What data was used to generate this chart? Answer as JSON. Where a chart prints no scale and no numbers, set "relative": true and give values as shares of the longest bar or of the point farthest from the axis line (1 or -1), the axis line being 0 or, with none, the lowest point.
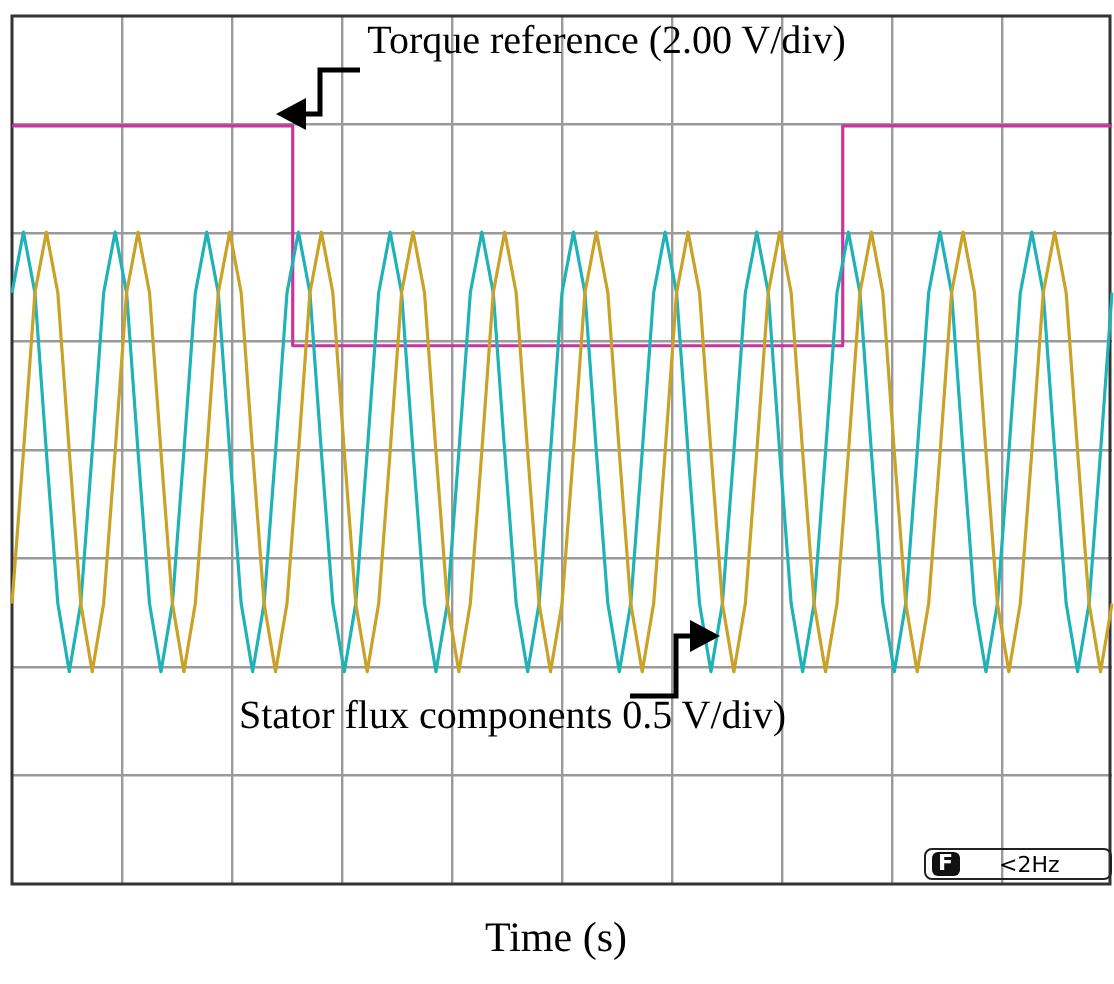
{
  "chart_data": {
    "type": "line",
    "relative": true,
    "xlabel": "Time (s)",
    "grid": true,
    "legend": false,
    "marker": "none",
    "annotations": [
      "Torque reference (2.00 V/div)",
      "Stator flux components 0.5 V/div)",
      "F",
      "<2Hz"
    ],
    "categories": [
      null,
      null,
      null,
      null,
      null,
      null,
      null,
      null,
      null,
      null,
      null,
      null,
      null,
      null,
      null,
      null,
      null,
      null,
      null,
      null,
      null,
      null,
      null,
      null,
      null,
      null,
      null,
      null,
      null,
      null,
      null,
      null,
      null,
      null,
      null,
      null,
      null,
      null,
      null,
      null,
      null,
      null,
      null,
      null,
      null,
      null,
      null,
      null,
      null,
      null,
      null,
      null,
      null,
      null,
      null,
      null,
      null,
      null,
      null,
      null,
      null,
      null,
      null,
      null,
      null,
      null,
      null,
      null,
      null,
      null,
      null,
      null,
      null,
      null,
      null,
      null,
      null,
      null,
      null,
      null,
      null,
      null,
      null,
      null,
      null,
      null,
      null,
      null,
      null,
      null,
      null,
      null,
      null,
      null,
      null,
      null,
      null
    ],
    "series": [
      {
        "type": "step",
        "color": "#c8359f",
        "values": [
          1,
          1,
          1,
          1,
          1,
          1,
          1,
          1,
          1,
          1,
          1,
          1,
          1,
          1,
          1,
          1,
          1,
          1,
          1,
          1,
          1,
          1,
          1,
          1,
          1,
          0.71,
          0.71,
          0.71,
          0.71,
          0.71,
          0.71,
          0.71,
          0.71,
          0.71,
          0.71,
          0.71,
          0.71,
          0.71,
          0.71,
          0.71,
          0.71,
          0.71,
          0.71,
          0.71,
          0.71,
          0.71,
          0.71,
          0.71,
          0.71,
          0.71,
          0.71,
          0.71,
          0.71,
          0.71,
          0.71,
          0.71,
          0.71,
          0.71,
          0.71,
          0.71,
          0.71,
          0.71,
          0.71,
          0.71,
          0.71,
          0.71,
          0.71,
          0.71,
          0.71,
          0.71,
          0.71,
          0.71,
          0.71,
          1,
          1,
          1,
          1,
          1,
          1,
          1,
          1,
          1,
          1,
          1,
          1,
          1,
          1,
          1,
          1,
          1,
          1,
          1,
          1,
          1,
          1,
          1,
          1
        ]
      },
      {
        "color": "#1fb3b8",
        "values": [
          0.78,
          0.86,
          0.78,
          0.57,
          0.37,
          0.28,
          0.37,
          0.57,
          0.78,
          0.86,
          0.78,
          0.57,
          0.37,
          0.28,
          0.37,
          0.57,
          0.78,
          0.86,
          0.78,
          0.57,
          0.37,
          0.28,
          0.37,
          0.57,
          0.78,
          0.86,
          0.78,
          0.57,
          0.37,
          0.28,
          0.37,
          0.57,
          0.78,
          0.86,
          0.78,
          0.57,
          0.37,
          0.28,
          0.37,
          0.57,
          0.78,
          0.86,
          0.78,
          0.57,
          0.37,
          0.28,
          0.37,
          0.57,
          0.78,
          0.86,
          0.78,
          0.57,
          0.37,
          0.28,
          0.37,
          0.57,
          0.78,
          0.86,
          0.78,
          0.57,
          0.37,
          0.28,
          0.37,
          0.57,
          0.78,
          0.86,
          0.78,
          0.57,
          0.37,
          0.28,
          0.37,
          0.57,
          0.78,
          0.86,
          0.78,
          0.57,
          0.37,
          0.28,
          0.37,
          0.57,
          0.78,
          0.86,
          0.78,
          0.57,
          0.37,
          0.28,
          0.37,
          0.57,
          0.78,
          0.86,
          0.78,
          0.57,
          0.37,
          0.28,
          0.37,
          0.57,
          0.78
        ]
      },
      {
        "color": "#c9a227",
        "values": [
          0.37,
          0.57,
          0.78,
          0.86,
          0.78,
          0.57,
          0.37,
          0.28,
          0.37,
          0.57,
          0.78,
          0.86,
          0.78,
          0.57,
          0.37,
          0.28,
          0.37,
          0.57,
          0.78,
          0.86,
          0.78,
          0.57,
          0.37,
          0.28,
          0.37,
          0.57,
          0.78,
          0.86,
          0.78,
          0.57,
          0.37,
          0.28,
          0.37,
          0.57,
          0.78,
          0.86,
          0.78,
          0.57,
          0.37,
          0.28,
          0.37,
          0.57,
          0.78,
          0.86,
          0.78,
          0.57,
          0.37,
          0.28,
          0.37,
          0.57,
          0.78,
          0.86,
          0.78,
          0.57,
          0.37,
          0.28,
          0.37,
          0.57,
          0.78,
          0.86,
          0.78,
          0.57,
          0.37,
          0.28,
          0.37,
          0.57,
          0.78,
          0.86,
          0.78,
          0.57,
          0.37,
          0.28,
          0.37,
          0.57,
          0.78,
          0.86,
          0.78,
          0.57,
          0.37,
          0.28,
          0.37,
          0.57,
          0.78,
          0.86,
          0.78,
          0.57,
          0.37,
          0.28,
          0.37,
          0.57,
          0.78,
          0.86,
          0.78,
          0.57,
          0.37,
          0.28,
          0.37
        ]
      }
    ]
  }
}
